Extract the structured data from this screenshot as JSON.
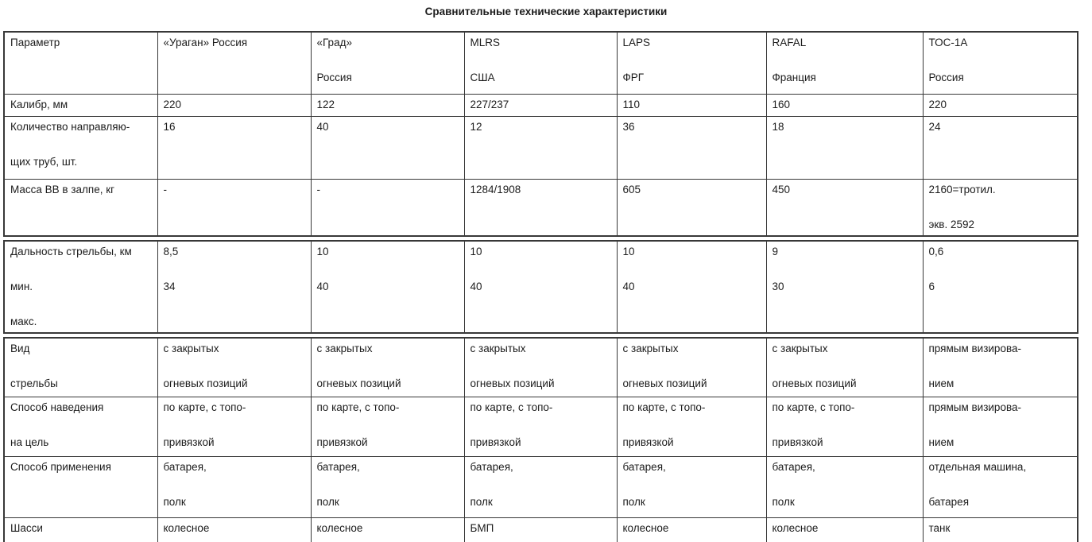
{
  "title": "Сравнительные технические характеристики",
  "table": {
    "columns": [
      [
        "Параметр"
      ],
      [
        "«Ураган» Россия"
      ],
      [
        "«Град»",
        "Россия"
      ],
      [
        "MLRS",
        "США"
      ],
      [
        "LAPS",
        "ФРГ"
      ],
      [
        "RAFAL",
        "Франция"
      ],
      [
        "ТОС-1А",
        "Россия"
      ]
    ],
    "sections": [
      {
        "rows": [
          {
            "param": [
              "Калибр, мм"
            ],
            "values": [
              [
                "220"
              ],
              [
                "122"
              ],
              [
                "227/237"
              ],
              [
                "110"
              ],
              [
                "160"
              ],
              [
                "220"
              ]
            ]
          },
          {
            "param": [
              "Количество направляю-",
              "щих труб, шт."
            ],
            "values": [
              [
                "16"
              ],
              [
                "40"
              ],
              [
                "12"
              ],
              [
                "36"
              ],
              [
                "18"
              ],
              [
                "24"
              ]
            ]
          },
          {
            "param": [
              "Масса ВВ в залпе, кг"
            ],
            "values": [
              [
                "-"
              ],
              [
                "-"
              ],
              [
                "1284/1908"
              ],
              [
                "605"
              ],
              [
                "450"
              ],
              [
                "2160=тротил.",
                "экв. 2592"
              ]
            ]
          }
        ]
      },
      {
        "rows": [
          {
            "param": [
              "Дальность стрельбы, км",
              "мин.",
              "макс."
            ],
            "values": [
              [
                "8,5",
                "34"
              ],
              [
                "10",
                "40"
              ],
              [
                "10",
                "40"
              ],
              [
                "10",
                "40"
              ],
              [
                "9",
                "30"
              ],
              [
                "0,6",
                "6"
              ]
            ]
          }
        ]
      },
      {
        "rows": [
          {
            "param": [
              "Вид",
              "стрельбы"
            ],
            "values": [
              [
                "с закрытых",
                "огневых позиций"
              ],
              [
                "с закрытых",
                "огневых позиций"
              ],
              [
                "с закрытых",
                "огневых позиций"
              ],
              [
                "с закрытых",
                "огневых позиций"
              ],
              [
                "с закрытых",
                "огневых позиций"
              ],
              [
                "прямым визирова-",
                "нием"
              ]
            ]
          },
          {
            "param": [
              "Способ наведения",
              "на цель"
            ],
            "values": [
              [
                "по карте, с топо-",
                "привязкой"
              ],
              [
                "по карте, с топо-",
                "привязкой"
              ],
              [
                "по карте, с топо-",
                "привязкой"
              ],
              [
                "по карте, с топо-",
                "привязкой"
              ],
              [
                "по карте, с топо-",
                "привязкой"
              ],
              [
                "прямым визирова-",
                "нием"
              ]
            ]
          },
          {
            "param": [
              "Способ применения"
            ],
            "values": [
              [
                "батарея,",
                "полк"
              ],
              [
                "батарея,",
                "полк"
              ],
              [
                "батарея,",
                "полк"
              ],
              [
                "батарея,",
                "полк"
              ],
              [
                "батарея,",
                "полк"
              ],
              [
                "отдельная машина,",
                "батарея"
              ]
            ]
          },
          {
            "param": [
              "Шасси"
            ],
            "values": [
              [
                "колесное"
              ],
              [
                "колесное"
              ],
              [
                "БМП"
              ],
              [
                "колесное"
              ],
              [
                "колесное"
              ],
              [
                "танк"
              ]
            ]
          }
        ]
      }
    ]
  }
}
